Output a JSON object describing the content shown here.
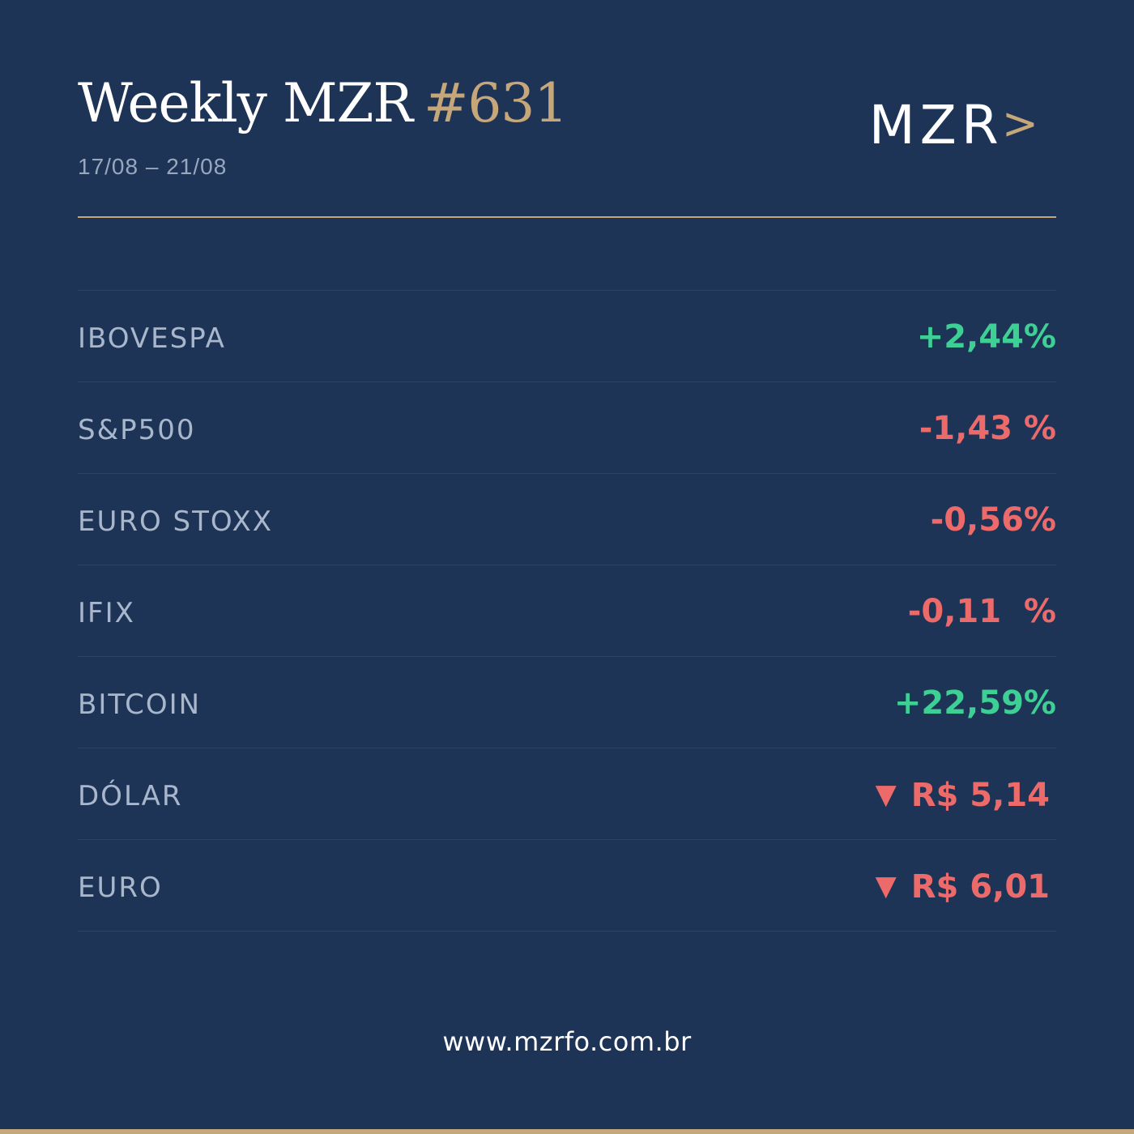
{
  "header": {
    "title": "Weekly MZR",
    "issue": "#631",
    "date_range": "17/08 – 21/08",
    "logo_text": "MZR",
    "logo_chevron": ">"
  },
  "rows": [
    {
      "label": "IBOVESPA",
      "value": "+2,44%",
      "trend": "up"
    },
    {
      "label": "S&P500",
      "value": "-1,43 %",
      "trend": "down"
    },
    {
      "label": "EURO STOXX",
      "value": "-0,56%",
      "trend": "down"
    },
    {
      "label": "IFIX",
      "value": "-0,11  %",
      "trend": "down"
    },
    {
      "label": "BITCOIN",
      "value": "+22,59%",
      "trend": "up"
    },
    {
      "label": "DÓLAR",
      "value": "R$ 5,14",
      "trend": "down",
      "indicator": "▼"
    },
    {
      "label": "EURO",
      "value": "R$ 6,01",
      "trend": "down",
      "indicator": "▼"
    }
  ],
  "footer": {
    "url": "www.mzrfo.com.br"
  },
  "colors": {
    "background": "#1e3457",
    "accent_gold": "#c6a77a",
    "positive": "#3ecf94",
    "negative": "#ec6a6a"
  }
}
